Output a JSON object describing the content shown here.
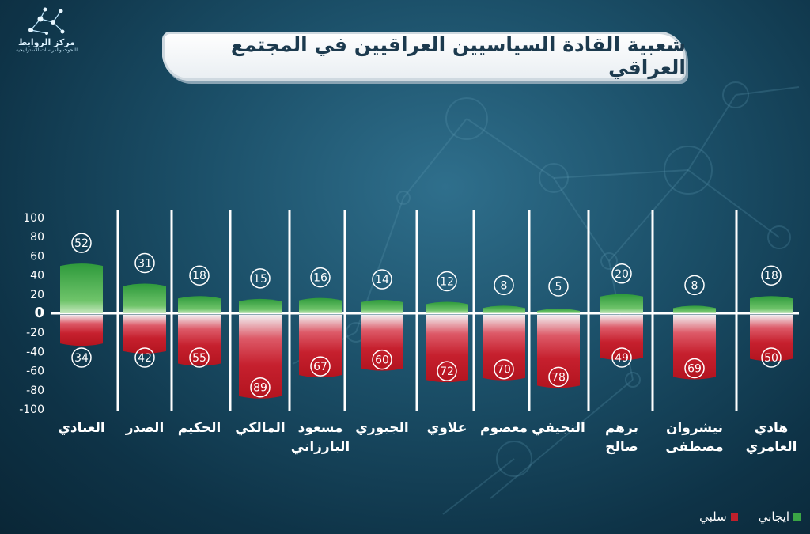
{
  "logo": {
    "name": "مركز الروابط",
    "subtitle": "للبحوث والدراسات الاستراتيجية"
  },
  "title": "شعبية القادة السياسيين العراقيين في المجتمع العراقي",
  "colors": {
    "positive": "#3aa545",
    "negative": "#c0202c"
  },
  "legend": {
    "positive": "ايجابي",
    "negative": "سلبي"
  },
  "chart_data": {
    "type": "bar",
    "title": "شعبية القادة السياسيين العراقيين في المجتمع العراقي",
    "categories": [
      "العبادي",
      "الصدر",
      "الحكيم",
      "المالكي",
      "مسعود البارزاني",
      "الجبوري",
      "علاوي",
      "معصوم",
      "النجيفي",
      "برهم صالح",
      "نيشروان مصطفى",
      "هادي العامري"
    ],
    "series": [
      {
        "name": "ايجابي",
        "values": [
          52,
          31,
          18,
          15,
          16,
          14,
          12,
          8,
          5,
          20,
          8,
          18
        ]
      },
      {
        "name": "سلبي",
        "values": [
          34,
          42,
          55,
          89,
          67,
          60,
          72,
          70,
          78,
          49,
          69,
          50
        ]
      }
    ],
    "yticks": [
      100,
      80,
      60,
      40,
      20,
      0,
      -20,
      -40,
      -60,
      -80,
      -100
    ],
    "ylim": [
      -100,
      100
    ],
    "xlabel": "",
    "ylabel": "",
    "grid": false,
    "legend_position": "bottom-right"
  }
}
